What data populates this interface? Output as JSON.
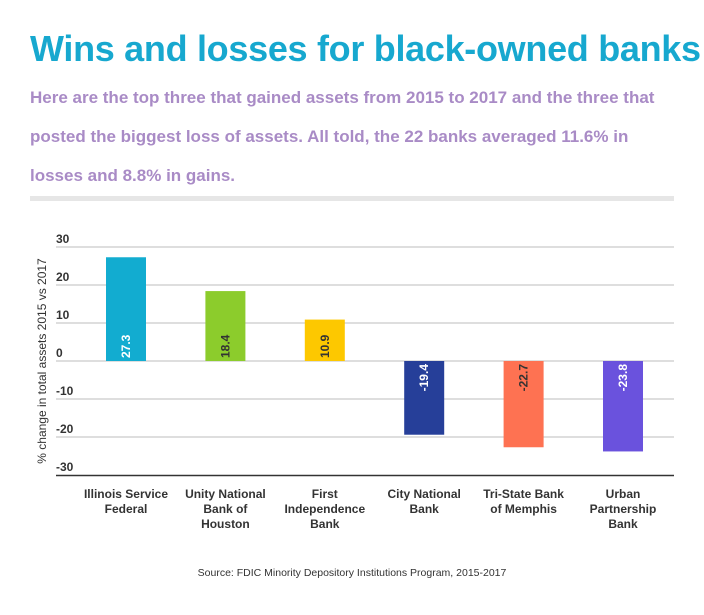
{
  "title": "Wins and losses for black-owned banks",
  "subtitle": "Here are the top three that gained assets from 2015 to 2017 and the three that posted the biggest loss of assets. All told, the 22 banks averaged 11.6% in losses and 8.8% in gains.",
  "source": "Source: FDIC Minority Depository Institutions Program, 2015-2017",
  "chart_data": {
    "type": "bar",
    "title": "Wins and losses for black-owned banks",
    "xlabel": "",
    "ylabel": "% change in total assets 2015 vs 2017",
    "ylim": [
      -30,
      30
    ],
    "yticks": [
      30,
      20,
      10,
      0,
      -10,
      -20,
      -30
    ],
    "grid": true,
    "categories": [
      [
        "Illinois Service",
        "Federal"
      ],
      [
        "Unity National",
        "Bank of",
        "Houston"
      ],
      [
        "First",
        "Independence",
        "Bank"
      ],
      [
        "City National",
        "Bank"
      ],
      [
        "Tri-State Bank",
        "of Memphis"
      ],
      [
        "Urban",
        "Partnership",
        "Bank"
      ]
    ],
    "values": [
      27.3,
      18.4,
      10.9,
      -19.4,
      -22.7,
      -23.8
    ],
    "labels": [
      "27.3",
      "18.4",
      "10.9",
      "-19.4",
      "-22.7",
      "-23.8"
    ],
    "colors": [
      "#12acd0",
      "#8ccc2c",
      "#fdc800",
      "#263f99",
      "#fe7252",
      "#6a52dd"
    ],
    "label_colors": [
      "#ffffff",
      "#333333",
      "#333333",
      "#ffffff",
      "#333333",
      "#ffffff"
    ]
  }
}
